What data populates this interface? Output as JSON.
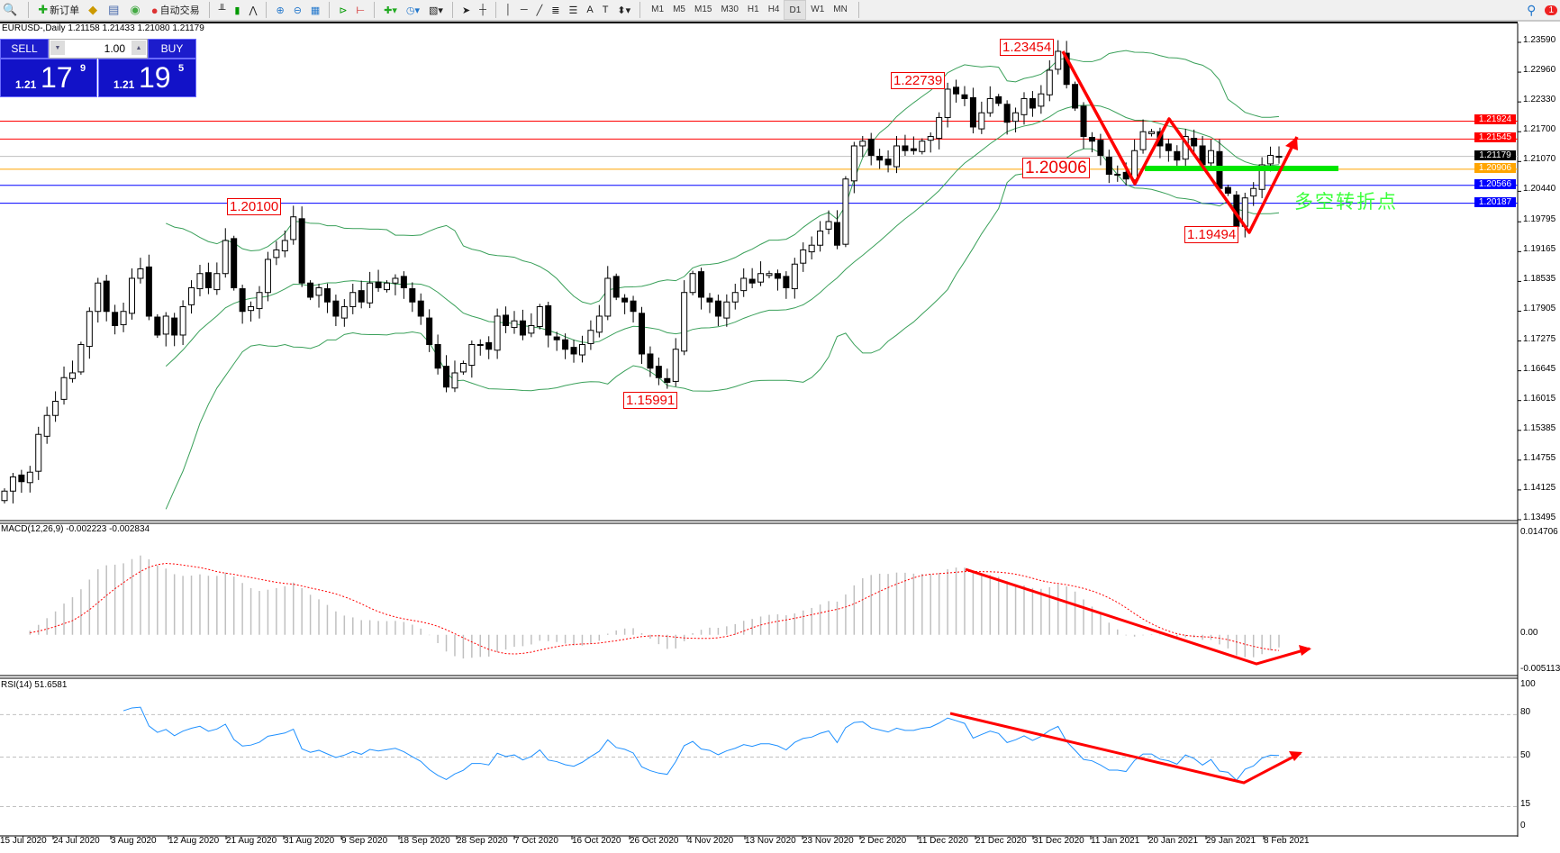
{
  "toolbar": {
    "new_order": "新订单",
    "auto_trading": "自动交易",
    "icons": [
      "zoom-window-icon",
      "new-order-icon",
      "metaeditor-icon",
      "navigator-icon",
      "signals-icon",
      "auto-trading-icon",
      "bar-chart-icon",
      "candlestick-icon",
      "line-chart-icon",
      "zoom-in-icon",
      "zoom-out-icon",
      "tile-windows-icon",
      "chart-shift-icon",
      "autoscroll-icon",
      "indicators-icon",
      "periods-icon",
      "templates-icon",
      "cursor-icon",
      "crosshair-icon",
      "vertical-line-icon",
      "horizontal-line-icon",
      "trendline-icon",
      "fibonacci-icon",
      "text-icon",
      "text-label-icon",
      "arrows-icon"
    ],
    "timeframes": [
      "M1",
      "M5",
      "M15",
      "M30",
      "H1",
      "H4",
      "D1",
      "W1",
      "MN"
    ],
    "active_timeframe": "D1",
    "notification_count": "1"
  },
  "chart": {
    "title": "EURUSD-,Daily  1.21158 1.21433 1.21080 1.21179",
    "one_click": {
      "sell_label": "SELL",
      "buy_label": "BUY",
      "lot": "1.00",
      "sell_small": "1.21",
      "sell_big": "17",
      "sell_pip": "9",
      "buy_small": "1.21",
      "buy_big": "19",
      "buy_pip": "5"
    },
    "annotations": {
      "high": "1.23454",
      "second": "1.22739",
      "aug_high": "1.20100",
      "nov_low": "1.15991",
      "pivot": "1.20906",
      "feb_low": "1.19494",
      "note": "多空转折点"
    },
    "colors": {
      "bull": "#ffffff",
      "bear": "#000000",
      "bands": "#3aa05a",
      "arrow": "#ff0000",
      "pivot_bar": "#00e600",
      "macd_hist": "#c0c0c0",
      "macd_signal": "#ff0000",
      "rsi": "#1e90ff"
    }
  },
  "chart_data": {
    "type": "candlestick",
    "symbol": "EURUSD-",
    "timeframe": "Daily",
    "closes": [
      1.141,
      1.144,
      1.143,
      1.145,
      1.153,
      1.157,
      1.16,
      1.165,
      1.166,
      1.172,
      1.179,
      1.185,
      1.179,
      1.176,
      1.179,
      1.186,
      1.188,
      1.178,
      1.174,
      1.178,
      1.174,
      1.18,
      1.184,
      1.187,
      1.184,
      1.187,
      1.194,
      1.184,
      1.179,
      1.18,
      1.183,
      1.19,
      1.192,
      1.194,
      1.199,
      1.185,
      1.182,
      1.184,
      1.181,
      1.178,
      1.18,
      1.183,
      1.181,
      1.185,
      1.184,
      1.185,
      1.186,
      1.184,
      1.181,
      1.178,
      1.172,
      1.167,
      1.163,
      1.166,
      1.168,
      1.172,
      1.172,
      1.171,
      1.178,
      1.176,
      1.177,
      1.174,
      1.176,
      1.18,
      1.174,
      1.173,
      1.171,
      1.17,
      1.172,
      1.175,
      1.178,
      1.186,
      1.182,
      1.181,
      1.179,
      1.17,
      1.167,
      1.165,
      1.164,
      1.171,
      1.183,
      1.187,
      1.182,
      1.181,
      1.178,
      1.181,
      1.183,
      1.186,
      1.185,
      1.187,
      1.187,
      1.186,
      1.184,
      1.189,
      1.192,
      1.193,
      1.196,
      1.198,
      1.193,
      1.207,
      1.214,
      1.215,
      1.212,
      1.211,
      1.21,
      1.214,
      1.213,
      1.213,
      1.215,
      1.216,
      1.22,
      1.226,
      1.225,
      1.224,
      1.218,
      1.221,
      1.224,
      1.223,
      1.219,
      1.221,
      1.224,
      1.222,
      1.225,
      1.23,
      1.234,
      1.227,
      1.222,
      1.216,
      1.215,
      1.212,
      1.208,
      1.208,
      1.207,
      1.213,
      1.217,
      1.217,
      1.214,
      1.213,
      1.211,
      1.216,
      1.214,
      1.21,
      1.213,
      1.205,
      1.204,
      1.197,
      1.203,
      1.205,
      1.21,
      1.212,
      1.2118
    ],
    "price_axis": [
      "1.23590",
      "1.22960",
      "1.22330",
      "1.21700",
      "1.21070",
      "1.20440",
      "1.19795",
      "1.19165",
      "1.18535",
      "1.17905",
      "1.17275",
      "1.16645",
      "1.16015",
      "1.15385",
      "1.14755",
      "1.14125",
      "1.13495"
    ],
    "price_range": [
      1.13495,
      1.2359
    ],
    "levels": [
      {
        "value": "1.21924",
        "color": "#ff0000"
      },
      {
        "value": "1.21545",
        "color": "#ff0000"
      },
      {
        "value": "1.21179",
        "color": "#000000"
      },
      {
        "value": "1.20906",
        "color": "#ffa500"
      },
      {
        "value": "1.20566",
        "color": "#0000ff"
      },
      {
        "value": "1.20187",
        "color": "#0000ff"
      }
    ],
    "dates": [
      "15 Jul 2020",
      "24 Jul 2020",
      "3 Aug 2020",
      "12 Aug 2020",
      "21 Aug 2020",
      "31 Aug 2020",
      "9 Sep 2020",
      "18 Sep 2020",
      "28 Sep 2020",
      "7 Oct 2020",
      "16 Oct 2020",
      "26 Oct 2020",
      "4 Nov 2020",
      "13 Nov 2020",
      "23 Nov 2020",
      "2 Dec 2020",
      "11 Dec 2020",
      "21 Dec 2020",
      "31 Dec 2020",
      "11 Jan 2021",
      "20 Jan 2021",
      "29 Jan 2021",
      "8 Feb 2021"
    ],
    "macd": {
      "label": "MACD(12,26,9) -0.002223 -0.002834",
      "axis": [
        "0.014706",
        "0.00",
        "-0.005113"
      ],
      "range": [
        -0.005113,
        0.014706
      ]
    },
    "rsi": {
      "label": "RSI(14) 51.6581",
      "axis": [
        "100",
        "80",
        "50",
        "15",
        "0"
      ],
      "levels": [
        80,
        50,
        15
      ]
    }
  }
}
